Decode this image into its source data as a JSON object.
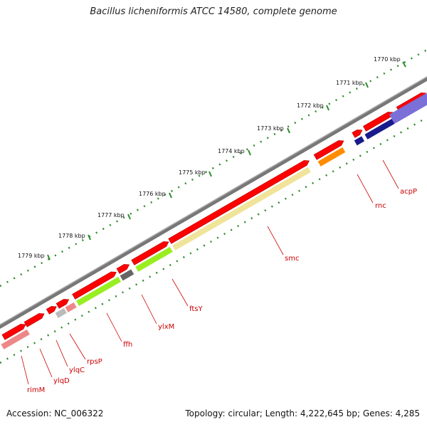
{
  "title": "Bacillus licheniformis ATCC 14580, complete genome",
  "footer": {
    "accession": "Accession: NC_006322",
    "summary": "Topology: circular; Length: 4,222,645 bp; Genes: 4,285"
  },
  "map": {
    "kbp_ticks": [
      "1770 kbp",
      "1771 kbp",
      "1772 kbp",
      "1773 kbp",
      "1774 kbp",
      "1775 kbp",
      "1776 kbp",
      "1777 kbp",
      "1778 kbp",
      "1779 kbp"
    ],
    "gene_labels": [
      "acpP",
      "rnc",
      "smc",
      "ftsY",
      "ylxM",
      "ffh",
      "rpsP",
      "ylqC",
      "ylqD",
      "rimM"
    ],
    "colors": {
      "backbone": "#808080",
      "tick_dots": "#2e8b2e",
      "red_gene": "#ff0000",
      "label_red": "#cc0000",
      "orange": "#ff8c00",
      "green": "#99ee22",
      "yellow": "#f0e39a",
      "grey": "#666666",
      "light_grey": "#bbbbbb",
      "pink": "#ee8888",
      "navy": "#1a1a8c",
      "blue": "#7b6fd8"
    }
  }
}
